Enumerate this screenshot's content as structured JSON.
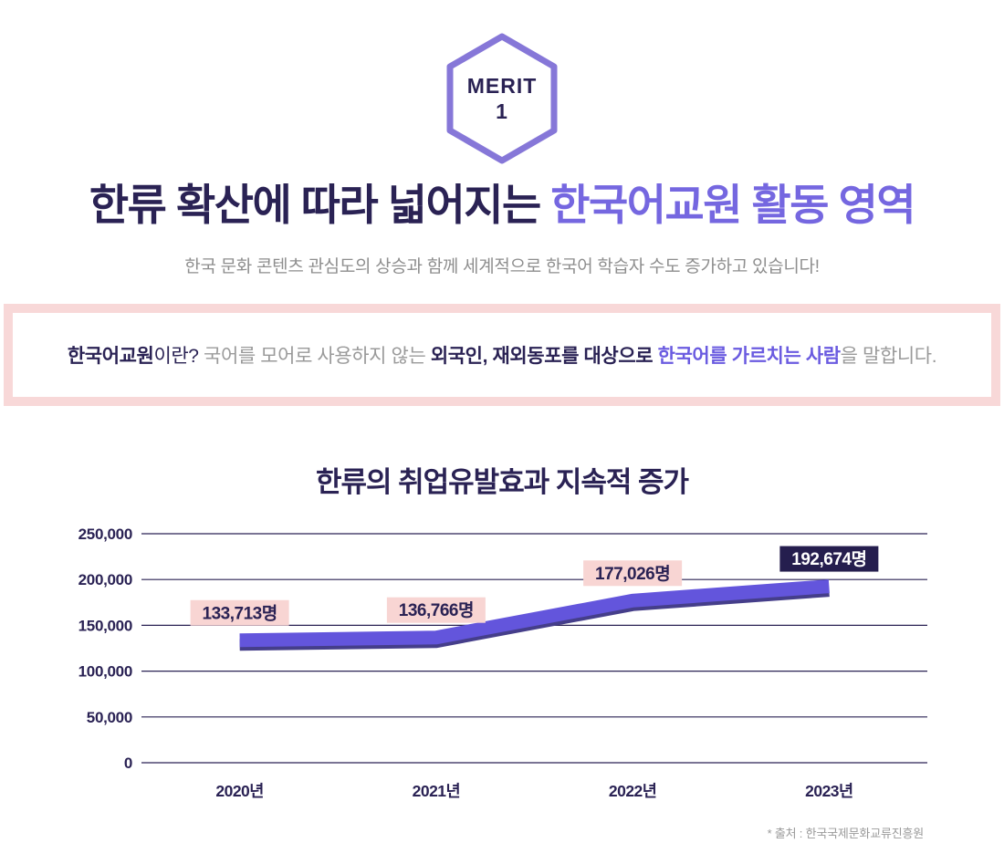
{
  "badge": {
    "line1": "MERIT",
    "line2": "1",
    "border_color": "#8677D8",
    "text_color": "#2A2254"
  },
  "headline": {
    "part1": "한류 확산에 따라 넓어지는 ",
    "part2": "한국어교원 활동 영역",
    "part1_color": "#2A2254",
    "part2_color": "#7567E0"
  },
  "subtitle": "한국 문화 콘텐츠 관심도의 상승과 함께 세계적으로 한국어 학습자 수도 증가하고 있습니다!",
  "info_box": {
    "segments": [
      {
        "text": "한국어교원",
        "style": "navy-bold"
      },
      {
        "text": "이란? ",
        "style": "navy"
      },
      {
        "text": "국어를 모어로 사용하지 않는 ",
        "style": "gray"
      },
      {
        "text": "외국인, 재외동포를 대상으로 ",
        "style": "navy-bold"
      },
      {
        "text": "한국어를 가르치는 사람",
        "style": "purple-bold"
      },
      {
        "text": "을 말합니다.",
        "style": "gray"
      }
    ]
  },
  "chart_data": {
    "type": "line",
    "title": "한류의 취업유발효과 지속적 증가",
    "categories": [
      "2020년",
      "2021년",
      "2022년",
      "2023년"
    ],
    "values": [
      133713,
      136766,
      177026,
      192674
    ],
    "point_labels": [
      "133,713명",
      "136,766명",
      "177,026명",
      "192,674명"
    ],
    "point_label_styles": [
      "pink",
      "pink",
      "pink",
      "dark"
    ],
    "ylim": [
      0,
      250000
    ],
    "ytick_step": 50000,
    "ytick_labels": [
      "0",
      "50,000",
      "100,000",
      "150,000",
      "200,000",
      "250,000"
    ],
    "grid": true,
    "legend": "none",
    "xlabel": "",
    "ylabel": "",
    "line_color": "#6355DC",
    "line_shadow_color": "#453E8A",
    "grid_color": "#2A2254",
    "tick_color": "#2A2254",
    "label_pink_bg": "#F8D5D3",
    "label_dark_bg": "#251E4E",
    "label_navy_text": "#2A2254",
    "label_white_text": "#FFFFFF",
    "source": "* 출처 : 한국국제문화교류진흥원"
  }
}
